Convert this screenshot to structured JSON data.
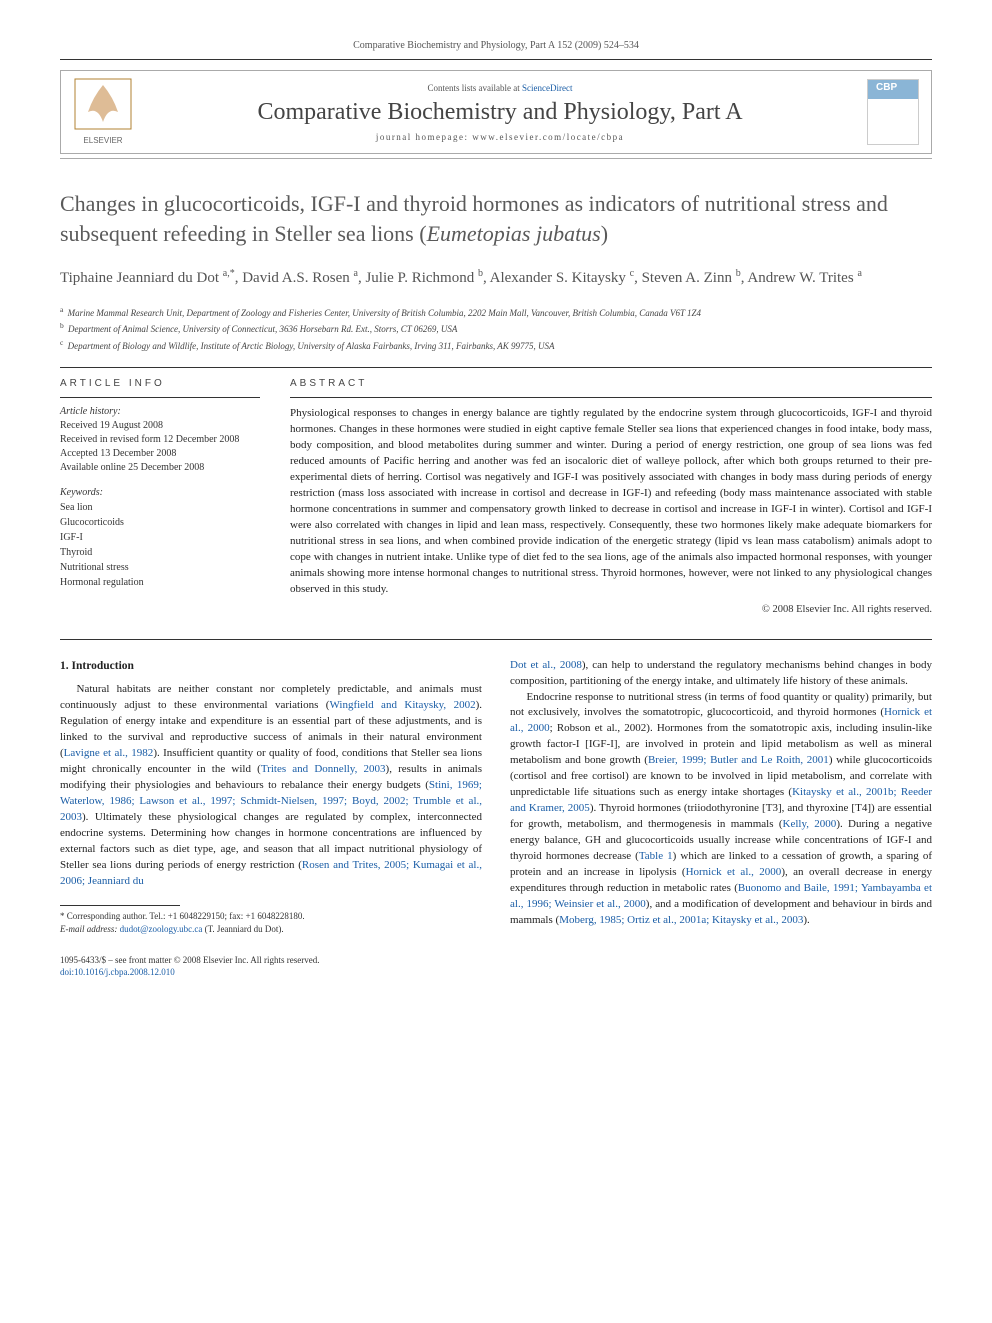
{
  "header": {
    "running_head": "Comparative Biochemistry and Physiology, Part A 152 (2009) 524–534"
  },
  "masthead": {
    "contents_prefix": "Contents lists available at ",
    "contents_link": "ScienceDirect",
    "journal_title": "Comparative Biochemistry and Physiology, Part A",
    "homepage_label": "journal homepage: www.elsevier.com/locate/cbpa",
    "publisher": "ELSEVIER"
  },
  "article": {
    "title_pre": "Changes in glucocorticoids, IGF-I and thyroid hormones as indicators of nutritional stress and subsequent refeeding in Steller sea lions (",
    "title_species": "Eumetopias jubatus",
    "title_post": ")",
    "authors_html": "Tiphaine Jeanniard du Dot <sup>a,*</sup>, David A.S. Rosen <sup>a</sup>, Julie P. Richmond <sup>b</sup>, Alexander S. Kitaysky <sup>c</sup>, Steven A. Zinn <sup>b</sup>, Andrew W. Trites <sup>a</sup>",
    "affiliations": {
      "a": "Marine Mammal Research Unit, Department of Zoology and Fisheries Center, University of British Columbia, 2202 Main Mall, Vancouver, British Columbia, Canada V6T 1Z4",
      "b": "Department of Animal Science, University of Connecticut, 3636 Horsebarn Rd. Ext., Storrs, CT 06269, USA",
      "c": "Department of Biology and Wildlife, Institute of Arctic Biology, University of Alaska Fairbanks, Irving 311, Fairbanks, AK 99775, USA"
    }
  },
  "info": {
    "heading": "ARTICLE INFO",
    "history_heading": "Article history:",
    "history": "Received 19 August 2008\nReceived in revised form 12 December 2008\nAccepted 13 December 2008\nAvailable online 25 December 2008",
    "keywords_heading": "Keywords:",
    "keywords": [
      "Sea lion",
      "Glucocorticoids",
      "IGF-I",
      "Thyroid",
      "Nutritional stress",
      "Hormonal regulation"
    ]
  },
  "abstract": {
    "heading": "ABSTRACT",
    "text": "Physiological responses to changes in energy balance are tightly regulated by the endocrine system through glucocorticoids, IGF-I and thyroid hormones. Changes in these hormones were studied in eight captive female Steller sea lions that experienced changes in food intake, body mass, body composition, and blood metabolites during summer and winter. During a period of energy restriction, one group of sea lions was fed reduced amounts of Pacific herring and another was fed an isocaloric diet of walleye pollock, after which both groups returned to their pre-experimental diets of herring. Cortisol was negatively and IGF-I was positively associated with changes in body mass during periods of energy restriction (mass loss associated with increase in cortisol and decrease in IGF-I) and refeeding (body mass maintenance associated with stable hormone concentrations in summer and compensatory growth linked to decrease in cortisol and increase in IGF-I in winter). Cortisol and IGF-I were also correlated with changes in lipid and lean mass, respectively. Consequently, these two hormones likely make adequate biomarkers for nutritional stress in sea lions, and when combined provide indication of the energetic strategy (lipid vs lean mass catabolism) animals adopt to cope with changes in nutrient intake. Unlike type of diet fed to the sea lions, age of the animals also impacted hormonal responses, with younger animals showing more intense hormonal changes to nutritional stress. Thyroid hormones, however, were not linked to any physiological changes observed in this study.",
    "copyright": "© 2008 Elsevier Inc. All rights reserved."
  },
  "body": {
    "section_heading": "1. Introduction",
    "col1_para1": "Natural habitats are neither constant nor completely predictable, and animals must continuously adjust to these environmental variations (Wingfield and Kitaysky, 2002). Regulation of energy intake and expenditure is an essential part of these adjustments, and is linked to the survival and reproductive success of animals in their natural environment (Lavigne et al., 1982). Insufficient quantity or quality of food, conditions that Steller sea lions might chronically encounter in the wild (Trites and Donnelly, 2003), results in animals modifying their physiologies and behaviours to rebalance their energy budgets (Stini, 1969; Waterlow, 1986; Lawson et al., 1997; Schmidt-Nielsen, 1997; Boyd, 2002; Trumble et al., 2003). Ultimately these physiological changes are regulated by complex, interconnected endocrine systems. Determining how changes in hormone concentrations are influenced by external factors such as diet type, age, and season that all impact nutritional physiology of Steller sea lions during periods of energy restriction (Rosen and Trites, 2005; Kumagai et al., 2006; Jeanniard du",
    "col2_para1": "Dot et al., 2008), can help to understand the regulatory mechanisms behind changes in body composition, partitioning of the energy intake, and ultimately life history of these animals.",
    "col2_para2": "Endocrine response to nutritional stress (in terms of food quantity or quality) primarily, but not exclusively, involves the somatotropic, glucocorticoid, and thyroid hormones (Hornick et al., 2000; Robson et al., 2002). Hormones from the somatotropic axis, including insulin-like growth factor-I [IGF-I], are involved in protein and lipid metabolism as well as mineral metabolism and bone growth (Breier, 1999; Butler and Le Roith, 2001) while glucocorticoids (cortisol and free cortisol) are known to be involved in lipid metabolism, and correlate with unpredictable life situations such as energy intake shortages (Kitaysky et al., 2001b; Reeder and Kramer, 2005). Thyroid hormones (triiodothyronine [T3], and thyroxine [T4]) are essential for growth, metabolism, and thermogenesis in mammals (Kelly, 2000). During a negative energy balance, GH and glucocorticoids usually increase while concentrations of IGF-I and thyroid hormones decrease (Table 1) which are linked to a cessation of growth, a sparing of protein and an increase in lipolysis (Hornick et al., 2000), an overall decrease in energy expenditures through reduction in metabolic rates (Buonomo and Baile, 1991; Yambayamba et al., 1996; Weinsier et al., 2000), and a modification of development and behaviour in birds and mammals (Moberg, 1985; Ortiz et al., 2001a; Kitaysky et al., 2003)."
  },
  "footnote": {
    "corr": "* Corresponding author. Tel.: +1 6048229150; fax: +1 6048228180.",
    "email_label": "E-mail address:",
    "email": "dudot@zoology.ubc.ca",
    "email_name": "(T. Jeanniard du Dot)."
  },
  "footer": {
    "issn": "1095-6433/$ – see front matter © 2008 Elsevier Inc. All rights reserved.",
    "doi": "doi:10.1016/j.cbpa.2008.12.010"
  },
  "refs": {
    "wingfield": "Wingfield and Kitaysky, 2002",
    "lavigne": "Lavigne et al., 1982",
    "trites_donnelly": "Trites and Donnelly, 2003",
    "stini_etc": "Stini, 1969; Waterlow, 1986; Lawson et al., 1997; Schmidt-Nielsen, 1997; Boyd, 2002; Trumble et al., 2003",
    "rosen_etc": "Rosen and Trites, 2005; Kumagai et al., 2006; Jeanniard du",
    "dot": "Dot et al., 2008",
    "hornick_robson": "Hornick et al., 2000; Robson et al., 2002",
    "breier_butler": "Breier, 1999; Butler and Le Roith, 2001",
    "kitaysky_reeder": "Kitaysky et al., 2001b; Reeder and Kramer, 2005",
    "kelly": "Kelly, 2000",
    "table1": "Table 1",
    "hornick": "Hornick et al., 2000",
    "buonomo_etc": "Buonomo and Baile, 1991; Yambayamba et al., 1996; Weinsier et al., 2000",
    "moberg_etc": "Moberg, 1985; Ortiz et al., 2001a; Kitaysky et al., 2003"
  },
  "colors": {
    "link": "#1a5da6",
    "text": "#333333",
    "rule": "#333333",
    "light_rule": "#aaaaaa"
  }
}
